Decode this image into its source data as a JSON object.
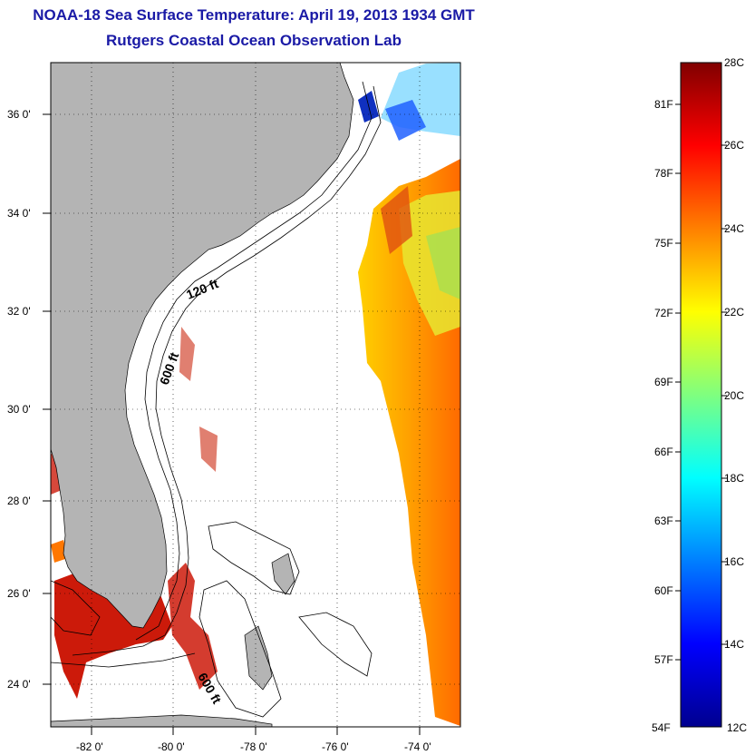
{
  "title": "NOAA-18 Sea Surface Temperature:  April 19, 2013 1934 GMT",
  "subtitle": "Rutgers Coastal Ocean Observation Lab",
  "map": {
    "lon_range": [
      -83,
      -73
    ],
    "lat_range": [
      23,
      37
    ],
    "x_ticks": [
      "-82 0'",
      "-80 0'",
      "-78 0'",
      "-76 0'",
      "-74 0'"
    ],
    "y_ticks": [
      "36 0'",
      "34 0'",
      "32 0'",
      "30 0'",
      "28 0'",
      "26 0'",
      "24 0'"
    ],
    "contour_labels": [
      "120 ft",
      "600 ft",
      "600 ft"
    ],
    "land_color": "#b4b4b4",
    "grid": "dotted"
  },
  "colorbar": {
    "celsius": [
      "28C",
      "26C",
      "24C",
      "22C",
      "20C",
      "18C",
      "16C",
      "14C",
      "12C"
    ],
    "fahrenheit": [
      "81F",
      "78F",
      "75F",
      "72F",
      "69F",
      "66F",
      "63F",
      "60F",
      "57F",
      "54F"
    ],
    "range_c": [
      12,
      28
    ],
    "colormap": "jet"
  }
}
